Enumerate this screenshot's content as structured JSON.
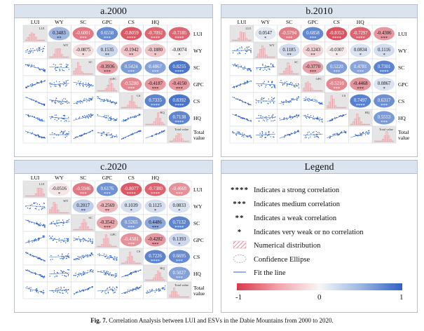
{
  "figure": {
    "caption_label": "Fig. 7.",
    "caption_text": "Correlation Analysis between LUI and ESVs in the Dabie Mountains from 2000 to 2020."
  },
  "variables": [
    "LUI",
    "WY",
    "SC",
    "GPC",
    "CS",
    "HQ",
    "Total value"
  ],
  "panels": [
    {
      "id": "a",
      "title": "a.2000",
      "show_top_labels": true,
      "show_right_labels": true,
      "correlations": [
        [
          null,
          0.3483,
          -0.6001,
          0.6558,
          -0.8059,
          -0.7092,
          -0.7185
        ],
        [
          null,
          null,
          -0.0875,
          0.1535,
          -0.1942,
          -0.188,
          -0.0074
        ],
        [
          null,
          null,
          null,
          -0.3936,
          0.5424,
          0.4867,
          0.8255
        ],
        [
          null,
          null,
          null,
          null,
          -0.528,
          -0.4187,
          -0.415
        ],
        [
          null,
          null,
          null,
          null,
          null,
          0.7335,
          0.8392
        ],
        [
          null,
          null,
          null,
          null,
          null,
          null,
          0.7138
        ]
      ],
      "stars": [
        [
          null,
          "**",
          "***",
          "***",
          "****",
          "****",
          "****"
        ],
        [
          null,
          null,
          "*",
          "**",
          "**",
          "*",
          "*"
        ],
        [
          null,
          null,
          null,
          "***",
          "***",
          "***",
          "****"
        ],
        [
          null,
          null,
          null,
          null,
          "***",
          "***",
          "***"
        ],
        [
          null,
          null,
          null,
          null,
          null,
          "****",
          "****"
        ],
        [
          null,
          null,
          null,
          null,
          null,
          null,
          "****"
        ]
      ]
    },
    {
      "id": "b",
      "title": "b.2010",
      "show_top_labels": true,
      "show_right_labels": true,
      "correlations": [
        [
          null,
          0.0547,
          -0.5794,
          0.6858,
          -0.8353,
          -0.7297,
          -0.4306
        ],
        [
          null,
          null,
          0.1185,
          -0.1243,
          -0.0307,
          0.0834,
          0.1116
        ],
        [
          null,
          null,
          null,
          -0.377,
          0.522,
          0.4781,
          0.7301
        ],
        [
          null,
          null,
          null,
          null,
          -0.521,
          -0.4468,
          0.0867
        ],
        [
          null,
          null,
          null,
          null,
          null,
          0.7497,
          0.6317
        ],
        [
          null,
          null,
          null,
          null,
          null,
          null,
          0.5553
        ]
      ],
      "stars": [
        [
          null,
          "*",
          "***",
          "***",
          "****",
          "****",
          "***"
        ],
        [
          null,
          null,
          "**",
          "**",
          "*",
          "*",
          "*"
        ],
        [
          null,
          null,
          null,
          "***",
          "***",
          "***",
          "****"
        ],
        [
          null,
          null,
          null,
          null,
          "***",
          "***",
          "*"
        ],
        [
          null,
          null,
          null,
          null,
          null,
          "****",
          "***"
        ],
        [
          null,
          null,
          null,
          null,
          null,
          null,
          "***"
        ]
      ]
    },
    {
      "id": "c",
      "title": "c.2020",
      "show_top_labels": true,
      "show_right_labels": true,
      "correlations": [
        [
          null,
          -0.0516,
          -0.5946,
          0.6176,
          -0.8077,
          -0.738,
          -0.4669
        ],
        [
          null,
          null,
          0.2017,
          -0.2569,
          0.1039,
          0.1125,
          0.0833
        ],
        [
          null,
          null,
          null,
          -0.3542,
          0.5265,
          0.4486,
          0.7132
        ],
        [
          null,
          null,
          null,
          null,
          -0.4581,
          -0.4282,
          0.1393
        ],
        [
          null,
          null,
          null,
          null,
          null,
          0.7226,
          0.6695
        ],
        [
          null,
          null,
          null,
          null,
          null,
          null,
          0.5027
        ]
      ],
      "stars": [
        [
          null,
          "*",
          "***",
          "***",
          "****",
          "****",
          "***"
        ],
        [
          null,
          null,
          "**",
          "**",
          "*",
          "*",
          "*"
        ],
        [
          null,
          null,
          null,
          "***",
          "***",
          "***",
          "****"
        ],
        [
          null,
          null,
          null,
          null,
          "***",
          "***",
          "*"
        ],
        [
          null,
          null,
          null,
          null,
          null,
          "****",
          "***"
        ],
        [
          null,
          null,
          null,
          null,
          null,
          null,
          "***"
        ]
      ]
    }
  ],
  "legend": {
    "title": "Legend",
    "items": [
      {
        "symbol": "****",
        "text": "Indicates a strong correlation"
      },
      {
        "symbol": "***",
        "text": "Indicates medium correlation"
      },
      {
        "symbol": "**",
        "text": "Indicates a weak correlation"
      },
      {
        "symbol": "*",
        "text": "Indicates very weak or no correlation"
      },
      {
        "symbol": "hatch",
        "text": "Numerical distribution"
      },
      {
        "symbol": "ellipse",
        "text": "Confidence Ellipse"
      },
      {
        "symbol": "line",
        "text": "Fit the line"
      }
    ],
    "colorbar": {
      "min": "-1",
      "mid": "0",
      "max": "1",
      "neg_color": "#d73a4a",
      "pos_color": "#2f62c5"
    }
  },
  "colors": {
    "negative": "#d73a4a",
    "positive": "#2f62c5",
    "scatter": "#2f62c5",
    "hist": "#e58c96",
    "header_bg": "#dbe3ee"
  }
}
